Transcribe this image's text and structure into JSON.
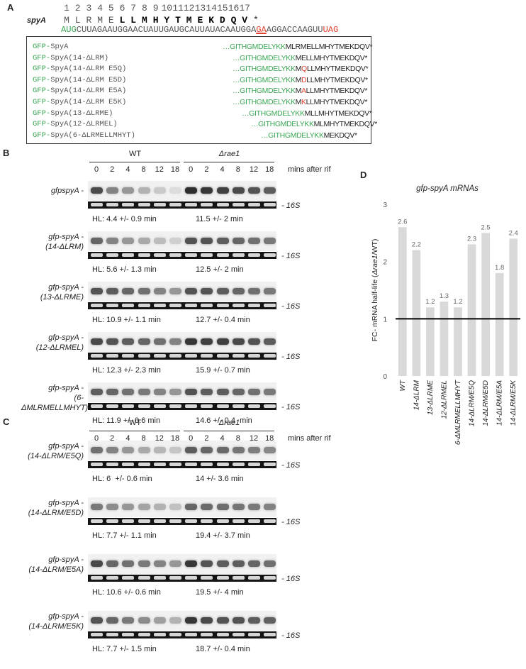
{
  "panelA": {
    "letter": "A",
    "gene": "spyA",
    "aa_numbers": [
      "1",
      "2",
      "3",
      "4",
      "5",
      "6",
      "7",
      "8",
      "9",
      "10",
      "11",
      "12",
      "13",
      "14",
      "15",
      "16",
      "17"
    ],
    "aa_light": [
      "M",
      "L",
      "R",
      "M",
      "E"
    ],
    "aa_bold": [
      "L",
      "L",
      "M",
      "H",
      "Y",
      "T",
      "M",
      "E",
      "K",
      "D",
      "Q",
      "V"
    ],
    "stop": "*",
    "rna_start": "AUG",
    "rna_mid1": "CUUAGAAUGGAACUAUUGAUGCAUUAUACAAUGGA",
    "rna_ga": "GA",
    "rna_mid2": "AGGACCAAGUU",
    "rna_stop": "UAG",
    "constructs": [
      {
        "prefix": "GFP-",
        "name": "SpyA",
        "seq_green": "…GITHGMDELYKK",
        "seq_red": "",
        "seq_rest": "MLRMELLMHYTMEKDQV*"
      },
      {
        "prefix": "GFP-",
        "name": "SpyA(14-ΔLRM)",
        "seq_green": "…GITHGMDELYKK",
        "seq_red": "",
        "seq_rest": "MELLMHYTMEKDQV*"
      },
      {
        "prefix": "GFP-",
        "name": "SpyA(14-ΔLRM E5Q)",
        "seq_green": "…GITHGMDELYKK",
        "seq_red": "MQ",
        "seq_rest": "LLMHYTMEKDQV*"
      },
      {
        "prefix": "GFP-",
        "name": "SpyA(14-ΔLRM E5D)",
        "seq_green": "…GITHGMDELYKK",
        "seq_red": "MD",
        "seq_rest": "LLMHYTMEKDQV*"
      },
      {
        "prefix": "GFP-",
        "name": "SpyA(14-ΔLRM E5A)",
        "seq_green": "…GITHGMDELYKK",
        "seq_red": "MA",
        "seq_rest": "LLMHYTMEKDQV*"
      },
      {
        "prefix": "GFP-",
        "name": "SpyA(14-ΔLRM E5K)",
        "seq_green": "…GITHGMDELYKK",
        "seq_red": "MK",
        "seq_rest": "LLMHYTMEKDQV*"
      },
      {
        "prefix": "GFP-",
        "name": "SpyA(13-ΔLRME)",
        "seq_green": "…GITHGMDELYKK",
        "seq_red": "",
        "seq_rest": "MLLMHYTMEKDQV*"
      },
      {
        "prefix": "GFP-",
        "name": "SpyA(12-ΔLRMEL)",
        "seq_green": "…GITHGMDELYKK",
        "seq_red": "",
        "seq_rest": "MLMHYTMEKDQV*"
      },
      {
        "prefix": "GFP-",
        "name": "SpyA(6-ΔLRMELLMHYT)",
        "seq_green": "…GITHGMDELYKK",
        "seq_red": "",
        "seq_rest": "MEKDQV*"
      }
    ]
  },
  "blots": {
    "wt_label": "WT",
    "mut_label": "Δrae1",
    "lane_times": [
      "0",
      "2",
      "4",
      "8",
      "12",
      "18",
      "0",
      "2",
      "4",
      "8",
      "12",
      "18"
    ],
    "axis_label": "mins after rif",
    "rrna_label": "- 16S",
    "panelB": {
      "letter": "B",
      "rows": [
        {
          "line1": "gfpspyA -",
          "line2": "",
          "hl_wt": "HL: 4.4 +/- 0.9 min",
          "hl_mut": "11.5 +/- 2 min",
          "wt": [
            0.85,
            0.55,
            0.45,
            0.3,
            0.18,
            0.08
          ],
          "mut": [
            1.0,
            0.95,
            0.9,
            0.85,
            0.8,
            0.75
          ]
        },
        {
          "line1": "gfp-spyA -",
          "line2": "(14-ΔLRM)",
          "hl_wt": "HL: 5.6 +/- 1.3 min",
          "hl_mut": "12.5 +/- 2 min",
          "wt": [
            0.7,
            0.55,
            0.45,
            0.35,
            0.25,
            0.15
          ],
          "mut": [
            0.8,
            0.8,
            0.75,
            0.7,
            0.65,
            0.6
          ]
        },
        {
          "line1": "gfp-spyA -",
          "line2": "(13-ΔLRME)",
          "hl_wt": "HL: 10.9 +/- 1.1 min",
          "hl_mut": "12.7 +/- 0.4 min",
          "wt": [
            0.8,
            0.75,
            0.7,
            0.65,
            0.55,
            0.45
          ],
          "mut": [
            0.8,
            0.8,
            0.75,
            0.7,
            0.65,
            0.6
          ]
        },
        {
          "line1": "gfp-spyA -",
          "line2": "(12-ΔLRMEL)",
          "hl_wt": "HL: 12.3 +/- 2.3 min",
          "hl_mut": "15.9 +/- 0.7 min",
          "wt": [
            0.85,
            0.8,
            0.75,
            0.7,
            0.65,
            0.55
          ],
          "mut": [
            0.95,
            0.9,
            0.9,
            0.85,
            0.8,
            0.75
          ]
        },
        {
          "line1": "gfp-spyA -",
          "line2": "(6-ΔMLRMELLMHYT)",
          "hl_wt": "HL: 11.9 +/- 0.6 min",
          "hl_mut": "14.6 +/- 0.4  min",
          "wt": [
            0.75,
            0.7,
            0.65,
            0.6,
            0.55,
            0.45
          ],
          "mut": [
            0.8,
            0.75,
            0.75,
            0.7,
            0.65,
            0.6
          ]
        }
      ]
    },
    "panelC": {
      "letter": "C",
      "rows": [
        {
          "line1": "gfp-spyA -",
          "line2": "(14-ΔLRM/E5Q)",
          "hl_wt": "HL: 6  +/- 0.6 min",
          "hl_mut": "14 +/- 3.6 min",
          "wt": [
            0.65,
            0.55,
            0.45,
            0.35,
            0.28,
            0.2
          ],
          "mut": [
            0.75,
            0.7,
            0.68,
            0.62,
            0.58,
            0.52
          ]
        },
        {
          "line1": "gfp-spyA -",
          "line2": "(14-ΔLRM/E5D)",
          "hl_wt": "HL: 7.7 +/- 1.1 min",
          "hl_mut": "19.4 +/- 3.7 min",
          "wt": [
            0.6,
            0.5,
            0.45,
            0.38,
            0.3,
            0.22
          ],
          "mut": [
            0.7,
            0.68,
            0.66,
            0.62,
            0.6,
            0.55
          ]
        },
        {
          "line1": "gfp-spyA -",
          "line2": "(14-ΔLRM/E5A)",
          "hl_wt": "HL: 10.6 +/- 0.6 min",
          "hl_mut": "19.5 +/- 4 min",
          "wt": [
            0.85,
            0.7,
            0.65,
            0.6,
            0.55,
            0.45
          ],
          "mut": [
            0.95,
            0.8,
            0.75,
            0.75,
            0.7,
            0.65
          ]
        },
        {
          "line1": "gfp-spyA -",
          "line2": "(14-ΔLRM/E5K)",
          "hl_wt": "HL: 7.7 +/- 1.5 min",
          "hl_mut": "18.7 +/- 0.4 min",
          "wt": [
            0.8,
            0.7,
            0.6,
            0.5,
            0.4,
            0.3
          ],
          "mut": [
            0.95,
            0.85,
            0.8,
            0.8,
            0.75,
            0.72
          ]
        }
      ]
    }
  },
  "panelD": {
    "letter": "D",
    "chart_data": {
      "type": "bar",
      "title": "gfp-spyA  mRNAs",
      "ylabel_pre": "FC- mRNA half-life (",
      "ylabel_ital": "Δrae1",
      "ylabel_post": "/WT)",
      "categories": [
        "WT",
        "14-ΔLRM",
        "13-ΔLRME",
        "12-ΔLRMEL",
        "6-ΔMLRMELLMHYT",
        "14-ΔLRM/E5Q",
        "14-ΔLRM/E5D",
        "14-ΔLRM/E5A",
        "14-ΔLRM/E5K"
      ],
      "values": [
        2.6,
        2.2,
        1.2,
        1.3,
        1.2,
        2.3,
        2.5,
        1.8,
        2.4
      ],
      "data_labels": [
        "2.6",
        "2.2",
        "1.2",
        "1.3",
        "1.2",
        "2.3",
        "2.5",
        "1.8",
        "2.4"
      ],
      "ylim": [
        0,
        3
      ],
      "yticks": [
        "0",
        "1",
        "2",
        "3"
      ],
      "reference_line": 1,
      "bar_color": "#d9d9d9"
    }
  }
}
